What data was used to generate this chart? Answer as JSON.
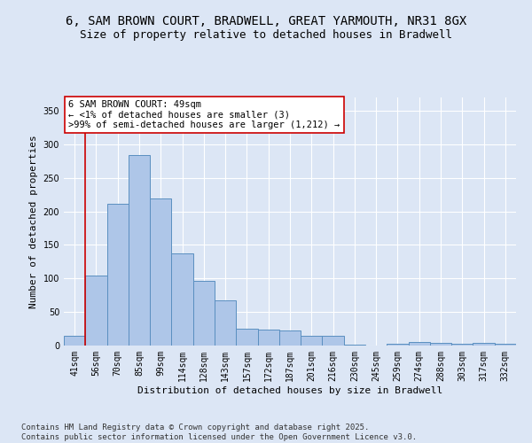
{
  "title_line1": "6, SAM BROWN COURT, BRADWELL, GREAT YARMOUTH, NR31 8GX",
  "title_line2": "Size of property relative to detached houses in Bradwell",
  "xlabel": "Distribution of detached houses by size in Bradwell",
  "ylabel": "Number of detached properties",
  "categories": [
    "41sqm",
    "56sqm",
    "70sqm",
    "85sqm",
    "99sqm",
    "114sqm",
    "128sqm",
    "143sqm",
    "157sqm",
    "172sqm",
    "187sqm",
    "201sqm",
    "216sqm",
    "230sqm",
    "245sqm",
    "259sqm",
    "274sqm",
    "288sqm",
    "303sqm",
    "317sqm",
    "332sqm"
  ],
  "values": [
    14,
    105,
    212,
    284,
    220,
    138,
    97,
    67,
    25,
    24,
    22,
    14,
    14,
    1,
    0,
    3,
    5,
    4,
    3,
    4,
    3
  ],
  "bar_color": "#aec6e8",
  "bar_edge_color": "#5a8fc0",
  "highlight_color": "#cc0000",
  "annotation_text": "6 SAM BROWN COURT: 49sqm\n← <1% of detached houses are smaller (3)\n>99% of semi-detached houses are larger (1,212) →",
  "annotation_box_color": "#ffffff",
  "annotation_box_edge": "#cc0000",
  "ylim": [
    0,
    370
  ],
  "yticks": [
    0,
    50,
    100,
    150,
    200,
    250,
    300,
    350
  ],
  "bg_color": "#dce6f5",
  "footer_text": "Contains HM Land Registry data © Crown copyright and database right 2025.\nContains public sector information licensed under the Open Government Licence v3.0.",
  "title_fontsize": 10,
  "subtitle_fontsize": 9,
  "axis_label_fontsize": 8,
  "tick_fontsize": 7,
  "annotation_fontsize": 7.5,
  "footer_fontsize": 6.5
}
